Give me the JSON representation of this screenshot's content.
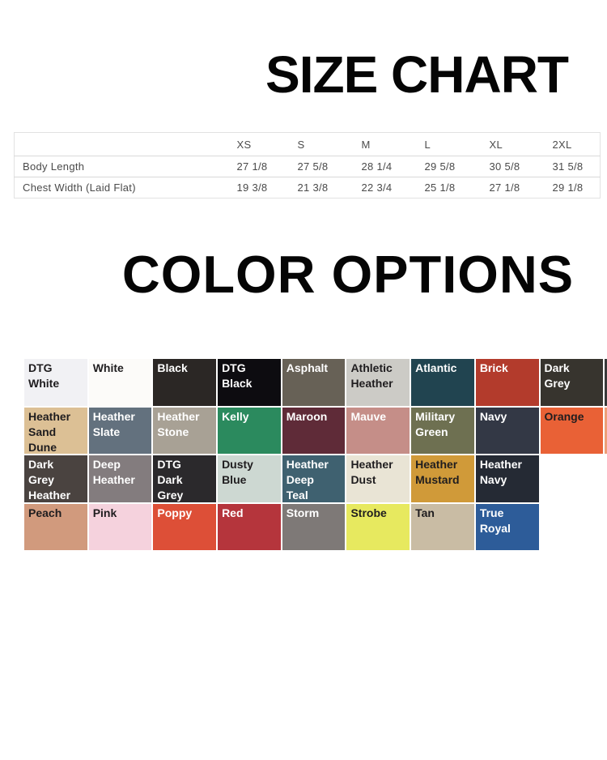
{
  "size_chart": {
    "title": "SIZE CHART",
    "columns": [
      "",
      "XS",
      "S",
      "M",
      "L",
      "XL",
      "2XL"
    ],
    "rows": [
      {
        "label": "Body Length",
        "values": [
          "27 1/8",
          "27 5/8",
          "28 1/4",
          "29 5/8",
          "30 5/8",
          "31 5/8"
        ]
      },
      {
        "label": "Chest Width (Laid Flat)",
        "values": [
          "19 3/8",
          "21 3/8",
          "22 3/4",
          "25 1/8",
          "27 1/8",
          "29 1/8"
        ]
      }
    ]
  },
  "color_options": {
    "title": "COLOR OPTIONS",
    "dark_text": "#1f1d1f",
    "light_text": "#ffffff",
    "rows": [
      [
        {
          "label": "DTG White",
          "bg": "#f1f1f4",
          "fg": "dark"
        },
        {
          "label": "White",
          "bg": "#fcfbf9",
          "fg": "dark"
        },
        {
          "label": "Black",
          "bg": "#2b2725",
          "fg": "light"
        },
        {
          "label": "DTG Black",
          "bg": "#0d0c10",
          "fg": "light"
        },
        {
          "label": "Asphalt",
          "bg": "#676156",
          "fg": "light"
        },
        {
          "label": "Athletic Heather",
          "bg": "#cccbc6",
          "fg": "dark"
        },
        {
          "label": "Atlantic",
          "bg": "#214450",
          "fg": "light"
        },
        {
          "label": "Brick",
          "bg": "#b33b2c",
          "fg": "light"
        },
        {
          "label": "Dark Grey",
          "bg": "#37342e",
          "fg": "light"
        }
      ],
      [
        {
          "label": "Heather Sand Dune",
          "bg": "#dcc095",
          "fg": "dark"
        },
        {
          "label": "Heather Slate",
          "bg": "#63717e",
          "fg": "light"
        },
        {
          "label": "Heather Stone",
          "bg": "#a8a195",
          "fg": "light"
        },
        {
          "label": "Kelly",
          "bg": "#2b8a5e",
          "fg": "light"
        },
        {
          "label": "Maroon",
          "bg": "#5f2b38",
          "fg": "light"
        },
        {
          "label": "Mauve",
          "bg": "#c58e88",
          "fg": "light"
        },
        {
          "label": "Military Green",
          "bg": "#6e7051",
          "fg": "light"
        },
        {
          "label": "Navy",
          "bg": "#333845",
          "fg": "light"
        },
        {
          "label": "Orange",
          "bg": "#e96136",
          "fg": "dark"
        }
      ],
      [
        {
          "label": "Dark Grey Heather",
          "bg": "#4a4340",
          "fg": "light"
        },
        {
          "label": "Deep Heather",
          "bg": "#837c7e",
          "fg": "light"
        },
        {
          "label": "DTG Dark Grey",
          "bg": "#2b292c",
          "fg": "light"
        },
        {
          "label": "Dusty Blue",
          "bg": "#cdd8d2",
          "fg": "dark"
        },
        {
          "label": "Heather Deep Teal",
          "bg": "#3f6170",
          "fg": "light"
        },
        {
          "label": "Heather Dust",
          "bg": "#e9e4d5",
          "fg": "dark"
        },
        {
          "label": "Heather Mustard",
          "bg": "#d09a39",
          "fg": "dark"
        },
        {
          "label": "Heather Navy",
          "bg": "#252a34",
          "fg": "light"
        }
      ],
      [
        {
          "label": "Peach",
          "bg": "#d19a7d",
          "fg": "dark"
        },
        {
          "label": "Pink",
          "bg": "#f5d2dd",
          "fg": "dark"
        },
        {
          "label": "Poppy",
          "bg": "#dd4f37",
          "fg": "light"
        },
        {
          "label": "Red",
          "bg": "#b5353c",
          "fg": "light"
        },
        {
          "label": "Storm",
          "bg": "#7e7977",
          "fg": "light"
        },
        {
          "label": "Strobe",
          "bg": "#e7e95f",
          "fg": "dark"
        },
        {
          "label": "Tan",
          "bg": "#c9bca4",
          "fg": "dark"
        },
        {
          "label": "True Royal",
          "bg": "#2d5c99",
          "fg": "light"
        }
      ]
    ],
    "cut_swatches": [
      {
        "row": 1,
        "bg": "#3a3a3a"
      },
      {
        "row": 2,
        "bg": "#ed9f79"
      }
    ]
  }
}
